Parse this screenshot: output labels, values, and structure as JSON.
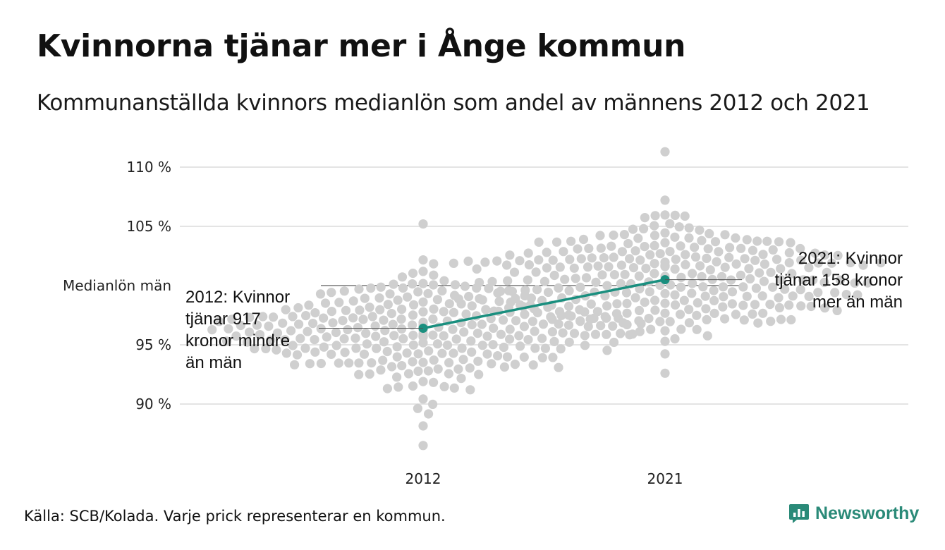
{
  "title": "Kvinnorna tjänar mer i Ånge kommun",
  "subtitle": "Kommunanställda kvinnors medianlön som andel av männens 2012 och 2021",
  "source": "Källa: SCB/Kolada. Varje prick representerar en kommun.",
  "brand": {
    "name": "Newsworthy",
    "icon": "newsworthy-logo-icon"
  },
  "colors": {
    "dots": "#cfcfcf",
    "highlight": "#1a8f7f",
    "gridline": "#e4e4e4",
    "reference_line": "#333333"
  },
  "chart_data": {
    "type": "scatter",
    "subtype": "beeswarm",
    "title": "Kvinnorna tjänar mer i Ånge kommun",
    "subtitle": "Kommunanställda kvinnors medianlön som andel av männens 2012 och 2021",
    "categories": [
      "2012",
      "2021"
    ],
    "ylim": [
      86.5,
      111.5
    ],
    "y_ticks": [
      90,
      95,
      105,
      110
    ],
    "y_tick_labels": [
      "90 %",
      "95 %",
      "105 %",
      "110 %"
    ],
    "reference_line": {
      "label": "Medianlön män",
      "value": 100
    },
    "grid": true,
    "distributions": [
      {
        "year": "2012",
        "count": 290,
        "center": 96.2,
        "spread": 2.3,
        "min": 86.5,
        "max": 105.2
      },
      {
        "year": "2021",
        "count": 290,
        "center": 100.6,
        "spread": 2.3,
        "min": 92.6,
        "max": 111.3
      }
    ],
    "highlight": {
      "name": "Ånge",
      "points": [
        {
          "x": "2012",
          "y": 96.4
        },
        {
          "x": "2021",
          "y": 100.5
        }
      ],
      "annotations": [
        {
          "x": "2012",
          "lines": [
            "2012: Kvinnor",
            "tjänar 917",
            "kronor mindre",
            "än män"
          ]
        },
        {
          "x": "2021",
          "lines": [
            "2021: Kvinnor",
            "tjänar 158 kronor",
            "mer än män"
          ]
        }
      ]
    }
  }
}
